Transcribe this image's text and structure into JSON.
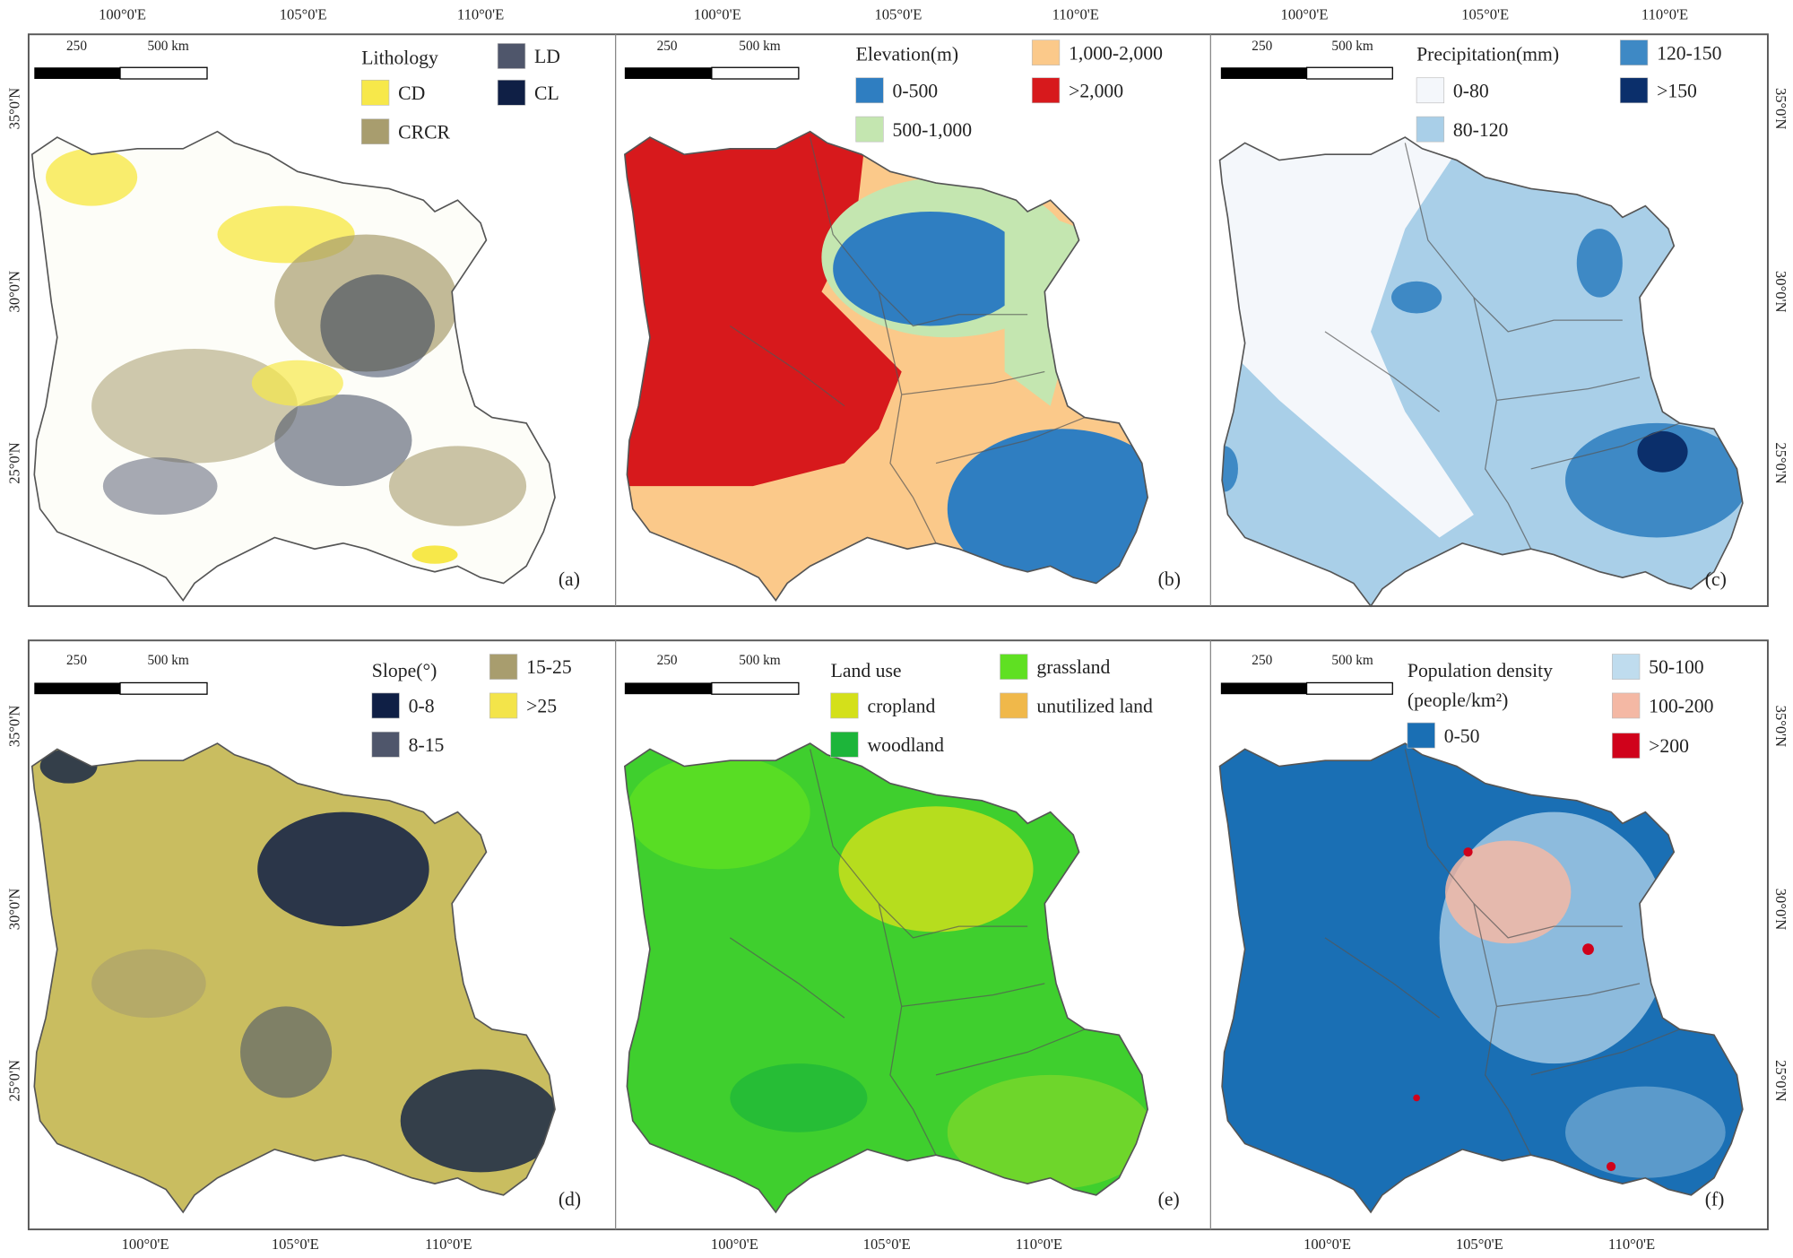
{
  "lon_ticks": [
    "100°0'E",
    "105°0'E",
    "110°0'E"
  ],
  "lat_ticks": [
    "35°0'N",
    "30°0'N",
    "25°0'N"
  ],
  "scale_bar": {
    "mid": "250",
    "end": "500 km"
  },
  "panels": [
    {
      "id": "a",
      "label": "(a)",
      "title": "Lithology",
      "items": [
        {
          "label": "LD",
          "color": "#4f566b"
        },
        {
          "label": "CD",
          "color": "#f7e84a"
        },
        {
          "label": "CL",
          "color": "#0f1f45"
        },
        {
          "label": "CRCR",
          "color": "#a89d6e"
        }
      ]
    },
    {
      "id": "b",
      "label": "(b)",
      "title": "Elevation(m)",
      "items": [
        {
          "label": "1,000-2,000",
          "color": "#fbc98a"
        },
        {
          "label": "0-500",
          "color": "#2f7ec1"
        },
        {
          "label": ">2,000",
          "color": "#d7191c"
        },
        {
          "label": "500-1,000",
          "color": "#c4e6b0"
        }
      ]
    },
    {
      "id": "c",
      "label": "(c)",
      "title": "Precipitation(mm)",
      "items": [
        {
          "label": "120-150",
          "color": "#3e89c5"
        },
        {
          "label": "0-80",
          "color": "#f4f7fb"
        },
        {
          "label": ">150",
          "color": "#0b2f6b"
        },
        {
          "label": "80-120",
          "color": "#a9cfe8"
        }
      ]
    },
    {
      "id": "d",
      "label": "(d)",
      "title": "Slope(°)",
      "items": [
        {
          "label": "15-25",
          "color": "#a89d6e"
        },
        {
          "label": "0-8",
          "color": "#0f1f45"
        },
        {
          "label": ">25",
          "color": "#f3e44a"
        },
        {
          "label": "8-15",
          "color": "#4f566b"
        }
      ]
    },
    {
      "id": "e",
      "label": "(e)",
      "title": "Land use",
      "items": [
        {
          "label": "grassland",
          "color": "#5fe022"
        },
        {
          "label": "cropland",
          "color": "#d4e01a"
        },
        {
          "label": "unutilized land",
          "color": "#f0b84a"
        },
        {
          "label": "woodland",
          "color": "#1db53a"
        }
      ]
    },
    {
      "id": "f",
      "label": "(f)",
      "title": "Population density",
      "subtitle": "(people/km²)",
      "items": [
        {
          "label": "50-100",
          "color": "#bfdcee"
        },
        {
          "label": "100-200",
          "color": "#f4b8a4"
        },
        {
          "label": "0-50",
          "color": "#1a6fb4"
        },
        {
          "label": ">200",
          "color": "#d0021b"
        }
      ]
    }
  ]
}
